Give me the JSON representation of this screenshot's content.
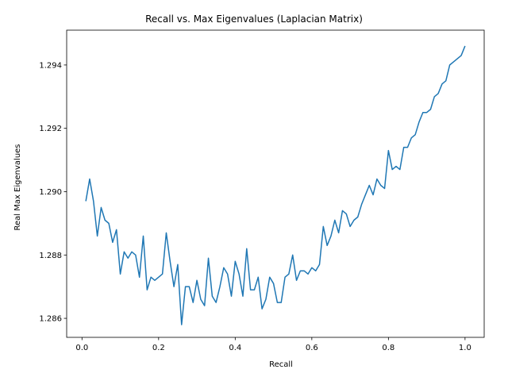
{
  "chart_data": {
    "type": "line",
    "title": "Recall vs. Max Eigenvalues (Laplacian Matrix)",
    "xlabel": "Recall",
    "ylabel": "Real Max Eigenvalues",
    "xlim": [
      -0.04,
      1.05
    ],
    "ylim": [
      1.2854,
      1.2951
    ],
    "x_ticks": [
      0.0,
      0.2,
      0.4,
      0.6,
      0.8,
      1.0
    ],
    "x_tick_labels": [
      "0.0",
      "0.2",
      "0.4",
      "0.6",
      "0.8",
      "1.0"
    ],
    "y_ticks": [
      1.286,
      1.288,
      1.29,
      1.292,
      1.294
    ],
    "y_tick_labels": [
      "1.286",
      "1.288",
      "1.290",
      "1.292",
      "1.294"
    ],
    "grid": false,
    "line_color": "#1f77b4",
    "series": [
      {
        "x": [
          0.01,
          0.02,
          0.03,
          0.04,
          0.05,
          0.06,
          0.07,
          0.08,
          0.09,
          0.1,
          0.11,
          0.12,
          0.13,
          0.14,
          0.15,
          0.16,
          0.17,
          0.18,
          0.19,
          0.2,
          0.21,
          0.22,
          0.23,
          0.24,
          0.25,
          0.26,
          0.27,
          0.28,
          0.29,
          0.3,
          0.31,
          0.32,
          0.33,
          0.34,
          0.35,
          0.36,
          0.37,
          0.38,
          0.39,
          0.4,
          0.41,
          0.42,
          0.43,
          0.44,
          0.45,
          0.46,
          0.47,
          0.48,
          0.49,
          0.5,
          0.51,
          0.52,
          0.53,
          0.54,
          0.55,
          0.56,
          0.57,
          0.58,
          0.59,
          0.6,
          0.61,
          0.62,
          0.63,
          0.64,
          0.65,
          0.66,
          0.67,
          0.68,
          0.69,
          0.7,
          0.71,
          0.72,
          0.73,
          0.74,
          0.75,
          0.76,
          0.77,
          0.78,
          0.79,
          0.8,
          0.81,
          0.82,
          0.83,
          0.84,
          0.85,
          0.86,
          0.87,
          0.88,
          0.89,
          0.9,
          0.91,
          0.92,
          0.93,
          0.94,
          0.95,
          0.96,
          0.97,
          0.98,
          0.99,
          1.0
        ],
        "y": [
          1.2897,
          1.2904,
          1.2897,
          1.2886,
          1.2895,
          1.2891,
          1.289,
          1.2884,
          1.2888,
          1.2874,
          1.2881,
          1.2879,
          1.2881,
          1.288,
          1.2873,
          1.2886,
          1.2869,
          1.2873,
          1.2872,
          1.2873,
          1.2874,
          1.2887,
          1.2878,
          1.287,
          1.2877,
          1.2858,
          1.287,
          1.287,
          1.2865,
          1.2872,
          1.2866,
          1.2864,
          1.2879,
          1.2867,
          1.2865,
          1.287,
          1.2876,
          1.2874,
          1.2867,
          1.2878,
          1.2874,
          1.2867,
          1.2882,
          1.2869,
          1.2869,
          1.2873,
          1.2863,
          1.2866,
          1.2873,
          1.2871,
          1.2865,
          1.2865,
          1.2873,
          1.2874,
          1.288,
          1.2872,
          1.2875,
          1.2875,
          1.2874,
          1.2876,
          1.2875,
          1.2877,
          1.2889,
          1.2883,
          1.2886,
          1.2891,
          1.2887,
          1.2894,
          1.2893,
          1.2889,
          1.2891,
          1.2892,
          1.2896,
          1.2899,
          1.2902,
          1.2899,
          1.2904,
          1.2902,
          1.2901,
          1.2913,
          1.2907,
          1.2908,
          1.2907,
          1.2914,
          1.2914,
          1.2917,
          1.2918,
          1.2922,
          1.2925,
          1.2925,
          1.2926,
          1.293,
          1.2931,
          1.2934,
          1.2935,
          1.294,
          1.2941,
          1.2942,
          1.2943,
          1.2946
        ]
      }
    ]
  }
}
